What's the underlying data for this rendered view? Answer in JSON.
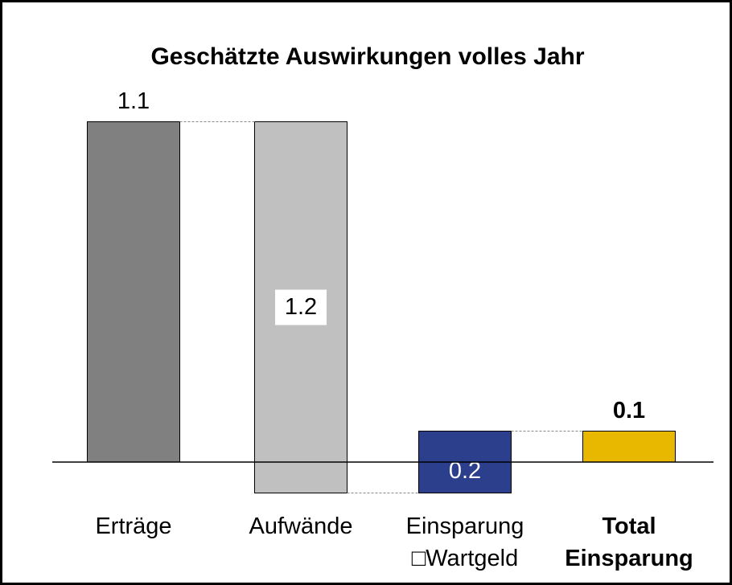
{
  "chart_data": {
    "type": "waterfall",
    "title": "Geschätzte Auswirkungen volles Jahr",
    "categories": [
      "Erträge",
      "Aufwände",
      "Einsparung\n□Wartgeld",
      "Total\nEinsparung"
    ],
    "values": [
      1.1,
      -1.2,
      0.2,
      0.1
    ],
    "value_labels": [
      "1.1",
      "1.2",
      "0.2",
      "0.1"
    ],
    "measures": [
      "absolute",
      "relative",
      "relative",
      "total"
    ],
    "colors": [
      "#808080",
      "#c0c0c0",
      "#2b3f8c",
      "#e8b800"
    ],
    "ylim": [
      -0.2,
      1.3
    ]
  }
}
